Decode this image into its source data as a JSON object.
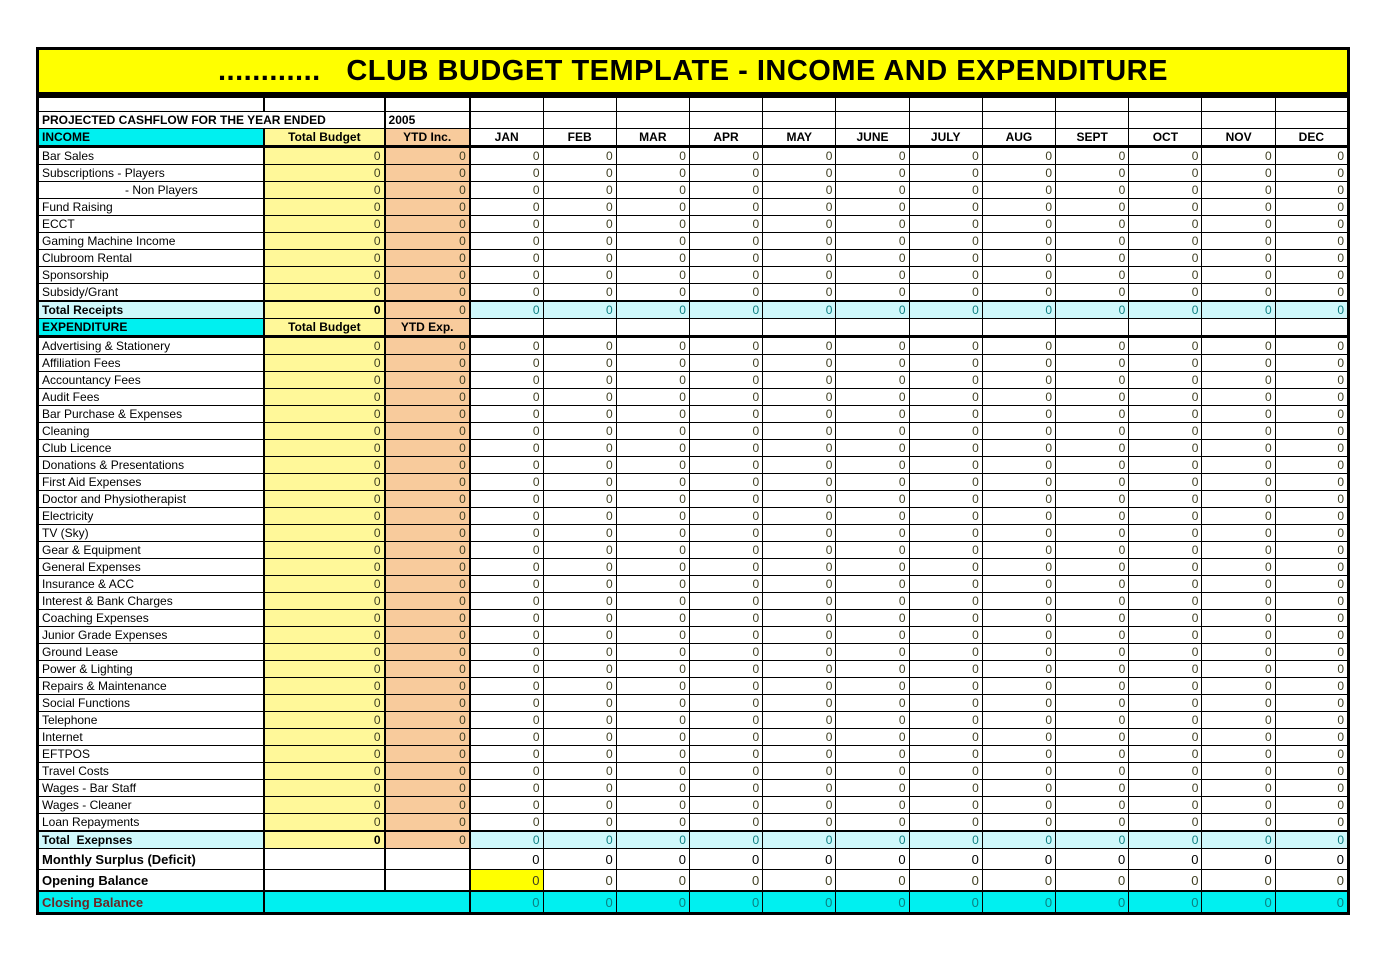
{
  "banner": {
    "title": "............   CLUB BUDGET TEMPLATE - INCOME AND EXPENDITURE"
  },
  "subheader": {
    "label": "PROJECTED CASHFLOW FOR THE YEAR ENDED",
    "year": "2005"
  },
  "columns": {
    "income_header": "INCOME",
    "expenditure_header": "EXPENDITURE",
    "total_budget": "Total Budget",
    "ytd_income": "YTD Inc.",
    "ytd_expense": "YTD Exp.",
    "months": [
      "JAN",
      "FEB",
      "MAR",
      "APR",
      "MAY",
      "JUNE",
      "JULY",
      "AUG",
      "SEPT",
      "OCT",
      "NOV",
      "DEC"
    ]
  },
  "income_rows": [
    {
      "label": "Bar Sales",
      "type": "item",
      "budget": "0",
      "ytd": "0",
      "months": [
        "0",
        "0",
        "0",
        "0",
        "0",
        "0",
        "0",
        "0",
        "0",
        "0",
        "0",
        "0"
      ]
    },
    {
      "label": "Subscriptions - Players",
      "type": "item",
      "budget": "0",
      "ytd": "0",
      "months": [
        "0",
        "0",
        "0",
        "0",
        "0",
        "0",
        "0",
        "0",
        "0",
        "0",
        "0",
        "0"
      ]
    },
    {
      "label": "- Non Players",
      "type": "item-indent",
      "budget": "0",
      "ytd": "0",
      "months": [
        "0",
        "0",
        "0",
        "0",
        "0",
        "0",
        "0",
        "0",
        "0",
        "0",
        "0",
        "0"
      ]
    },
    {
      "label": "Fund Raising",
      "type": "item",
      "budget": "0",
      "ytd": "0",
      "months": [
        "0",
        "0",
        "0",
        "0",
        "0",
        "0",
        "0",
        "0",
        "0",
        "0",
        "0",
        "0"
      ]
    },
    {
      "label": "ECCT",
      "type": "item",
      "budget": "0",
      "ytd": "0",
      "months": [
        "0",
        "0",
        "0",
        "0",
        "0",
        "0",
        "0",
        "0",
        "0",
        "0",
        "0",
        "0"
      ]
    },
    {
      "label": "Gaming Machine Income",
      "type": "item",
      "budget": "0",
      "ytd": "0",
      "months": [
        "0",
        "0",
        "0",
        "0",
        "0",
        "0",
        "0",
        "0",
        "0",
        "0",
        "0",
        "0"
      ]
    },
    {
      "label": "Clubroom Rental",
      "type": "item",
      "budget": "0",
      "ytd": "0",
      "months": [
        "0",
        "0",
        "0",
        "0",
        "0",
        "0",
        "0",
        "0",
        "0",
        "0",
        "0",
        "0"
      ]
    },
    {
      "label": "Sponsorship",
      "type": "item",
      "budget": "0",
      "ytd": "0",
      "months": [
        "0",
        "0",
        "0",
        "0",
        "0",
        "0",
        "0",
        "0",
        "0",
        "0",
        "0",
        "0"
      ]
    },
    {
      "label": "Subsidy/Grant",
      "type": "item",
      "budget": "0",
      "ytd": "0",
      "months": [
        "0",
        "0",
        "0",
        "0",
        "0",
        "0",
        "0",
        "0",
        "0",
        "0",
        "0",
        "0"
      ]
    },
    {
      "label": "Total Receipts",
      "type": "total",
      "budget": "0",
      "ytd": "0",
      "months": [
        "0",
        "0",
        "0",
        "0",
        "0",
        "0",
        "0",
        "0",
        "0",
        "0",
        "0",
        "0"
      ]
    }
  ],
  "expenditure_rows": [
    {
      "label": "Advertising & Stationery",
      "type": "item",
      "budget": "0",
      "ytd": "0",
      "months": [
        "0",
        "0",
        "0",
        "0",
        "0",
        "0",
        "0",
        "0",
        "0",
        "0",
        "0",
        "0"
      ]
    },
    {
      "label": "Affiliation Fees",
      "type": "item",
      "budget": "0",
      "ytd": "0",
      "months": [
        "0",
        "0",
        "0",
        "0",
        "0",
        "0",
        "0",
        "0",
        "0",
        "0",
        "0",
        "0"
      ]
    },
    {
      "label": "Accountancy Fees",
      "type": "item",
      "budget": "0",
      "ytd": "0",
      "months": [
        "0",
        "0",
        "0",
        "0",
        "0",
        "0",
        "0",
        "0",
        "0",
        "0",
        "0",
        "0"
      ]
    },
    {
      "label": "Audit Fees",
      "type": "item",
      "budget": "0",
      "ytd": "0",
      "months": [
        "0",
        "0",
        "0",
        "0",
        "0",
        "0",
        "0",
        "0",
        "0",
        "0",
        "0",
        "0"
      ]
    },
    {
      "label": "Bar Purchase & Expenses",
      "type": "item",
      "budget": "0",
      "ytd": "0",
      "months": [
        "0",
        "0",
        "0",
        "0",
        "0",
        "0",
        "0",
        "0",
        "0",
        "0",
        "0",
        "0"
      ]
    },
    {
      "label": "Cleaning",
      "type": "item",
      "budget": "0",
      "ytd": "0",
      "months": [
        "0",
        "0",
        "0",
        "0",
        "0",
        "0",
        "0",
        "0",
        "0",
        "0",
        "0",
        "0"
      ]
    },
    {
      "label": "Club Licence",
      "type": "item",
      "budget": "0",
      "ytd": "0",
      "months": [
        "0",
        "0",
        "0",
        "0",
        "0",
        "0",
        "0",
        "0",
        "0",
        "0",
        "0",
        "0"
      ]
    },
    {
      "label": "Donations & Presentations",
      "type": "item",
      "budget": "0",
      "ytd": "0",
      "months": [
        "0",
        "0",
        "0",
        "0",
        "0",
        "0",
        "0",
        "0",
        "0",
        "0",
        "0",
        "0"
      ]
    },
    {
      "label": "First Aid Expenses",
      "type": "item",
      "budget": "0",
      "ytd": "0",
      "months": [
        "0",
        "0",
        "0",
        "0",
        "0",
        "0",
        "0",
        "0",
        "0",
        "0",
        "0",
        "0"
      ]
    },
    {
      "label": "Doctor and Physiotherapist",
      "type": "item",
      "budget": "0",
      "ytd": "0",
      "months": [
        "0",
        "0",
        "0",
        "0",
        "0",
        "0",
        "0",
        "0",
        "0",
        "0",
        "0",
        "0"
      ]
    },
    {
      "label": "Electricity",
      "type": "item",
      "budget": "0",
      "ytd": "0",
      "months": [
        "0",
        "0",
        "0",
        "0",
        "0",
        "0",
        "0",
        "0",
        "0",
        "0",
        "0",
        "0"
      ]
    },
    {
      "label": "TV (Sky)",
      "type": "item",
      "budget": "0",
      "ytd": "0",
      "months": [
        "0",
        "0",
        "0",
        "0",
        "0",
        "0",
        "0",
        "0",
        "0",
        "0",
        "0",
        "0"
      ]
    },
    {
      "label": "Gear & Equipment",
      "type": "item",
      "budget": "0",
      "ytd": "0",
      "months": [
        "0",
        "0",
        "0",
        "0",
        "0",
        "0",
        "0",
        "0",
        "0",
        "0",
        "0",
        "0"
      ]
    },
    {
      "label": "General Expenses",
      "type": "item",
      "budget": "0",
      "ytd": "0",
      "months": [
        "0",
        "0",
        "0",
        "0",
        "0",
        "0",
        "0",
        "0",
        "0",
        "0",
        "0",
        "0"
      ]
    },
    {
      "label": "Insurance & ACC",
      "type": "item",
      "budget": "0",
      "ytd": "0",
      "months": [
        "0",
        "0",
        "0",
        "0",
        "0",
        "0",
        "0",
        "0",
        "0",
        "0",
        "0",
        "0"
      ]
    },
    {
      "label": "Interest & Bank Charges",
      "type": "item",
      "budget": "0",
      "ytd": "0",
      "months": [
        "0",
        "0",
        "0",
        "0",
        "0",
        "0",
        "0",
        "0",
        "0",
        "0",
        "0",
        "0"
      ]
    },
    {
      "label": "Coaching Expenses",
      "type": "item",
      "budget": "0",
      "ytd": "0",
      "months": [
        "0",
        "0",
        "0",
        "0",
        "0",
        "0",
        "0",
        "0",
        "0",
        "0",
        "0",
        "0"
      ]
    },
    {
      "label": "Junior Grade Expenses",
      "type": "item",
      "budget": "0",
      "ytd": "0",
      "months": [
        "0",
        "0",
        "0",
        "0",
        "0",
        "0",
        "0",
        "0",
        "0",
        "0",
        "0",
        "0"
      ]
    },
    {
      "label": "Ground Lease",
      "type": "item",
      "budget": "0",
      "ytd": "0",
      "months": [
        "0",
        "0",
        "0",
        "0",
        "0",
        "0",
        "0",
        "0",
        "0",
        "0",
        "0",
        "0"
      ]
    },
    {
      "label": "Power & Lighting",
      "type": "item",
      "budget": "0",
      "ytd": "0",
      "months": [
        "0",
        "0",
        "0",
        "0",
        "0",
        "0",
        "0",
        "0",
        "0",
        "0",
        "0",
        "0"
      ]
    },
    {
      "label": "Repairs & Maintenance",
      "type": "item",
      "budget": "0",
      "ytd": "0",
      "months": [
        "0",
        "0",
        "0",
        "0",
        "0",
        "0",
        "0",
        "0",
        "0",
        "0",
        "0",
        "0"
      ]
    },
    {
      "label": "Social Functions",
      "type": "item",
      "budget": "0",
      "ytd": "0",
      "months": [
        "0",
        "0",
        "0",
        "0",
        "0",
        "0",
        "0",
        "0",
        "0",
        "0",
        "0",
        "0"
      ]
    },
    {
      "label": "Telephone",
      "type": "item",
      "budget": "0",
      "ytd": "0",
      "months": [
        "0",
        "0",
        "0",
        "0",
        "0",
        "0",
        "0",
        "0",
        "0",
        "0",
        "0",
        "0"
      ]
    },
    {
      "label": "Internet",
      "type": "item",
      "budget": "0",
      "ytd": "0",
      "months": [
        "0",
        "0",
        "0",
        "0",
        "0",
        "0",
        "0",
        "0",
        "0",
        "0",
        "0",
        "0"
      ]
    },
    {
      "label": "EFTPOS",
      "type": "item",
      "budget": "0",
      "ytd": "0",
      "months": [
        "0",
        "0",
        "0",
        "0",
        "0",
        "0",
        "0",
        "0",
        "0",
        "0",
        "0",
        "0"
      ]
    },
    {
      "label": "Travel Costs",
      "type": "item",
      "budget": "0",
      "ytd": "0",
      "months": [
        "0",
        "0",
        "0",
        "0",
        "0",
        "0",
        "0",
        "0",
        "0",
        "0",
        "0",
        "0"
      ]
    },
    {
      "label": "Wages - Bar Staff",
      "type": "item",
      "budget": "0",
      "ytd": "0",
      "months": [
        "0",
        "0",
        "0",
        "0",
        "0",
        "0",
        "0",
        "0",
        "0",
        "0",
        "0",
        "0"
      ]
    },
    {
      "label": "Wages - Cleaner",
      "type": "item",
      "budget": "0",
      "ytd": "0",
      "months": [
        "0",
        "0",
        "0",
        "0",
        "0",
        "0",
        "0",
        "0",
        "0",
        "0",
        "0",
        "0"
      ]
    },
    {
      "label": "Loan Repayments",
      "type": "item",
      "budget": "0",
      "ytd": "0",
      "months": [
        "0",
        "0",
        "0",
        "0",
        "0",
        "0",
        "0",
        "0",
        "0",
        "0",
        "0",
        "0"
      ]
    },
    {
      "label": "Total  Exepnses",
      "type": "total",
      "budget": "0",
      "ytd": "0",
      "months": [
        "0",
        "0",
        "0",
        "0",
        "0",
        "0",
        "0",
        "0",
        "0",
        "0",
        "0",
        "0"
      ]
    }
  ],
  "bottom": {
    "surplus": {
      "label": "Monthly Surplus (Deficit)",
      "budget": "",
      "ytd": "",
      "months": [
        "0",
        "0",
        "0",
        "0",
        "0",
        "0",
        "0",
        "0",
        "0",
        "0",
        "0",
        "0"
      ]
    },
    "opening": {
      "label": "Opening Balance",
      "budget": "",
      "ytd": "",
      "highlight_month_index": 0,
      "months": [
        "0",
        "0",
        "0",
        "0",
        "0",
        "0",
        "0",
        "0",
        "0",
        "0",
        "0",
        "0"
      ]
    },
    "closing": {
      "label": "Closing Balance",
      "months": [
        "0",
        "0",
        "0",
        "0",
        "0",
        "0",
        "0",
        "0",
        "0",
        "0",
        "0",
        "0"
      ]
    }
  },
  "colors": {
    "banner_yellow": "#FFFF00",
    "section_header_cyan": "#00F0F0",
    "budget_column_yellow": "#FFF899",
    "ytd_column_peach": "#F8CB9C",
    "total_row_light_cyan": "#CFF8FB",
    "opening_balance_highlight": "#FFFF00",
    "closing_row_cyan": "#00F0F0",
    "total_value_teal": "#0c7f80",
    "closing_label_maroon": "#6e2424"
  }
}
